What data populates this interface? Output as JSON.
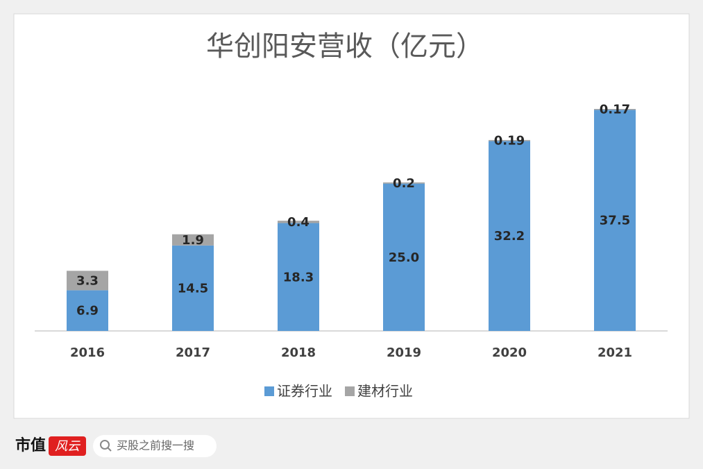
{
  "chart_data": {
    "type": "stacked_bar",
    "title": "华创阳安营收（亿元）",
    "categories": [
      "2016",
      "2017",
      "2018",
      "2019",
      "2020",
      "2021"
    ],
    "series": [
      {
        "name": "证券行业",
        "color": "#5b9bd5",
        "values": [
          6.9,
          14.5,
          18.3,
          25,
          32.2,
          37.5
        ],
        "value_labels": [
          "6.9",
          "14.5",
          "18.3",
          "25.0",
          "32.2",
          "37.5"
        ]
      },
      {
        "name": "建材行业",
        "color": "#a5a5a5",
        "values": [
          3.3,
          1.9,
          0.4,
          0.2,
          0.19,
          0.17
        ]
      }
    ],
    "legend": "bottom"
  },
  "footer": {
    "brand": "市值",
    "logo": "风云",
    "search_placeholder": "买股之前搜一搜"
  }
}
